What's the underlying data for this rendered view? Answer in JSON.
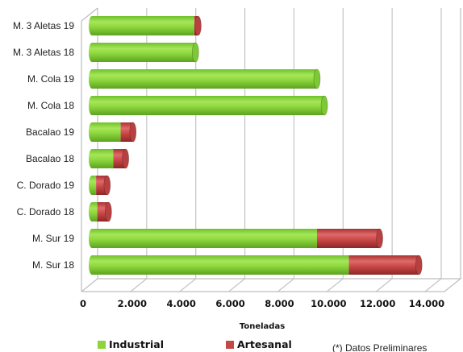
{
  "chart_data": {
    "type": "bar",
    "orientation": "horizontal",
    "stacked": true,
    "categories": [
      "M. 3 Aletas 19",
      "M. 3 Aletas 18",
      "M. Cola 19",
      "M. Cola 18",
      "Bacalao 19",
      "Bacalao 18",
      "C. Dorado 19",
      "C. Dorado 18",
      "M. Sur 19",
      "M. Sur 18"
    ],
    "series": [
      {
        "name": "Industrial",
        "color": "#8cd43a",
        "values": [
          4300,
          4350,
          9300,
          9600,
          1300,
          1000,
          300,
          350,
          9300,
          10600
        ]
      },
      {
        "name": "Artesanal",
        "color": "#c44848",
        "values": [
          150,
          0,
          0,
          0,
          500,
          500,
          450,
          450,
          2550,
          2850
        ]
      }
    ],
    "x_ticks": [
      "0",
      "2.000",
      "4.000",
      "6.000",
      "8.000",
      "10.000",
      "12.000",
      "14.000"
    ],
    "xlim": [
      0,
      14000
    ],
    "xlabel": "Toneladas",
    "grid": true,
    "legend_position": "bottom-left",
    "note": "(*) Datos Preliminares"
  }
}
